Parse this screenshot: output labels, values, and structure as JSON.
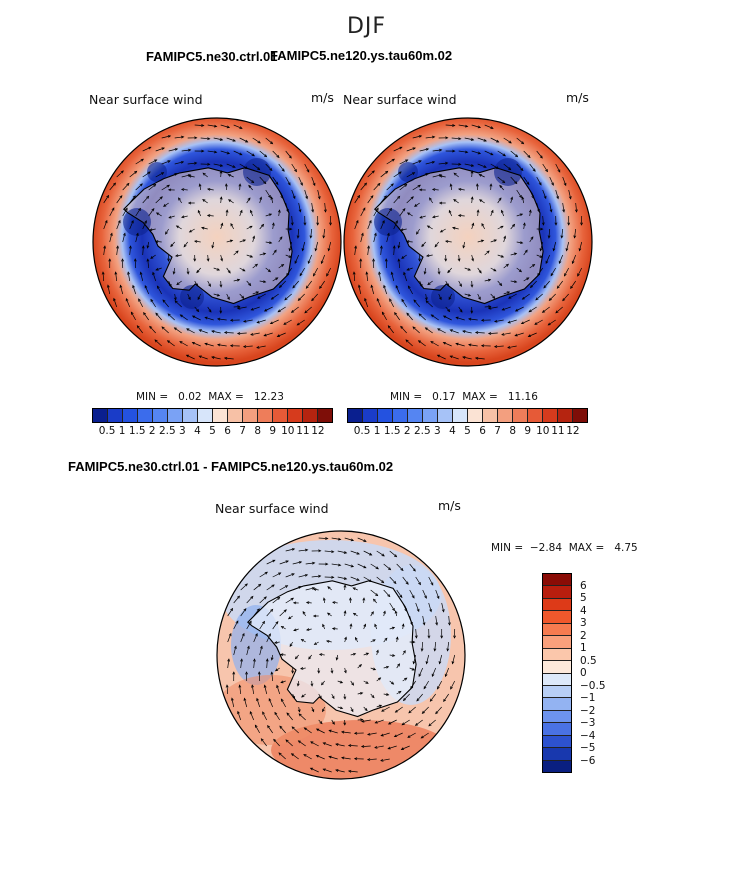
{
  "figure": {
    "season": "DJF"
  },
  "panels": [
    {
      "case": "FAMIPC5.ne30.ctrl.01",
      "variable": "Near surface wind",
      "units": "m/s",
      "stats": {
        "min_label": "MIN =",
        "min": "0.02",
        "max_label": "MAX =",
        "max": "12.23"
      }
    },
    {
      "case": "FAMIPC5.ne120.ys.tau60m.02",
      "variable": "Near surface wind",
      "units": "m/s",
      "stats": {
        "min_label": "MIN =",
        "min": "0.17",
        "max_label": "MAX =",
        "max": "11.16"
      }
    },
    {
      "case": "FAMIPC5.ne30.ctrl.01 - FAMIPC5.ne120.ys.tau60m.02",
      "variable": "Near surface wind",
      "units": "m/s",
      "stats": {
        "min_label": "MIN =",
        "min": "−2.84",
        "max_label": "MAX =",
        "max": "4.75"
      }
    }
  ],
  "colorbars": {
    "speed": {
      "labels": [
        "0.5",
        "1",
        "1.5",
        "2",
        "2.5",
        "3",
        "4",
        "5",
        "6",
        "7",
        "8",
        "9",
        "10",
        "11",
        "12"
      ],
      "colors": [
        "#0a1f8f",
        "#1a3cc8",
        "#2452e0",
        "#3b6cec",
        "#5585f2",
        "#7aa2f5",
        "#a6c2f7",
        "#d7e5fa",
        "#fbe3d4",
        "#f7c1a6",
        "#f39f7f",
        "#ee7d5a",
        "#e65a37",
        "#d63b1d",
        "#b52410",
        "#7e0e08"
      ]
    },
    "difference": {
      "labels": [
        "6",
        "5",
        "4",
        "3",
        "2",
        "1",
        "0.5",
        "0",
        "−0.5",
        "−1",
        "−2",
        "−3",
        "−4",
        "−5",
        "−6"
      ],
      "colors": [
        "#8a0c06",
        "#b81e0e",
        "#dd3a18",
        "#f0582c",
        "#f67b50",
        "#f9a07c",
        "#fbc7ab",
        "#fde9db",
        "#dde9fa",
        "#b8cff6",
        "#93b3f2",
        "#6d93ee",
        "#4a72e4",
        "#2d52cf",
        "#1838ae",
        "#0a1f80"
      ]
    }
  },
  "maps": {
    "vector_color": "#000000",
    "coast_color": "#000000"
  }
}
